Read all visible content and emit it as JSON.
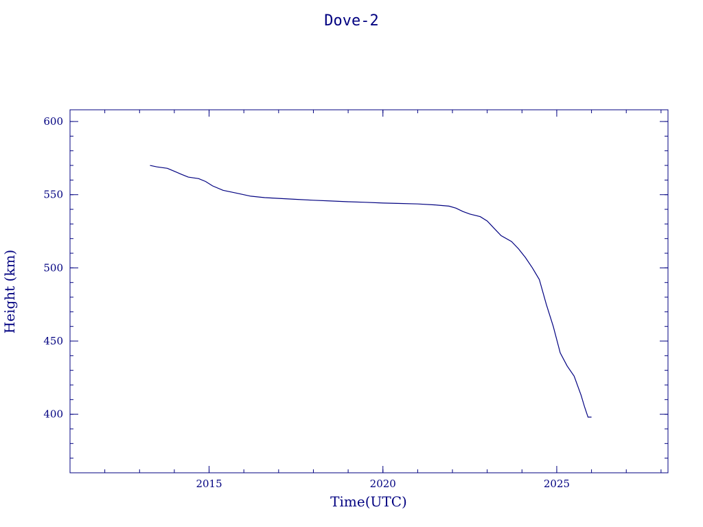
{
  "colors": {
    "ink": "#000080",
    "background": "#ffffff"
  },
  "chart_data": {
    "type": "line",
    "title": "Dove-2",
    "xlabel": "Time(UTC)",
    "ylabel": "Height (km)",
    "xlim": [
      2011,
      2028.2
    ],
    "ylim": [
      360,
      608
    ],
    "x_ticks": [
      2015,
      2020,
      2025
    ],
    "x_minor_step": 1,
    "y_ticks": [
      400,
      450,
      500,
      550,
      600
    ],
    "y_minor_step": 10,
    "grid": false,
    "series": [
      {
        "x": [
          2013.3,
          2013.5,
          2013.8,
          2014.0,
          2014.2,
          2014.4,
          2014.7,
          2014.9,
          2015.1,
          2015.4,
          2015.8,
          2016.2,
          2016.6,
          2017.0,
          2017.5,
          2018.0,
          2018.5,
          2019.0,
          2019.5,
          2020.0,
          2020.5,
          2021.0,
          2021.5,
          2021.9,
          2022.1,
          2022.3,
          2022.5,
          2022.8,
          2023.0,
          2023.2,
          2023.4,
          2023.7,
          2023.9,
          2024.1,
          2024.3,
          2024.5,
          2024.7,
          2024.9,
          2025.1,
          2025.3,
          2025.5,
          2025.7,
          2025.8,
          2025.9,
          2026.0
        ],
        "y": [
          570,
          569,
          568,
          566,
          564,
          562,
          561,
          559,
          556,
          553,
          551,
          549,
          548,
          547.5,
          546.8,
          546.2,
          545.7,
          545.2,
          544.8,
          544.3,
          544.0,
          543.7,
          543.0,
          542.2,
          540.8,
          538.5,
          536.8,
          535,
          532,
          527,
          522,
          518,
          513,
          507,
          500,
          492,
          475,
          460,
          442,
          433,
          426,
          413,
          405,
          398,
          398
        ]
      }
    ]
  }
}
